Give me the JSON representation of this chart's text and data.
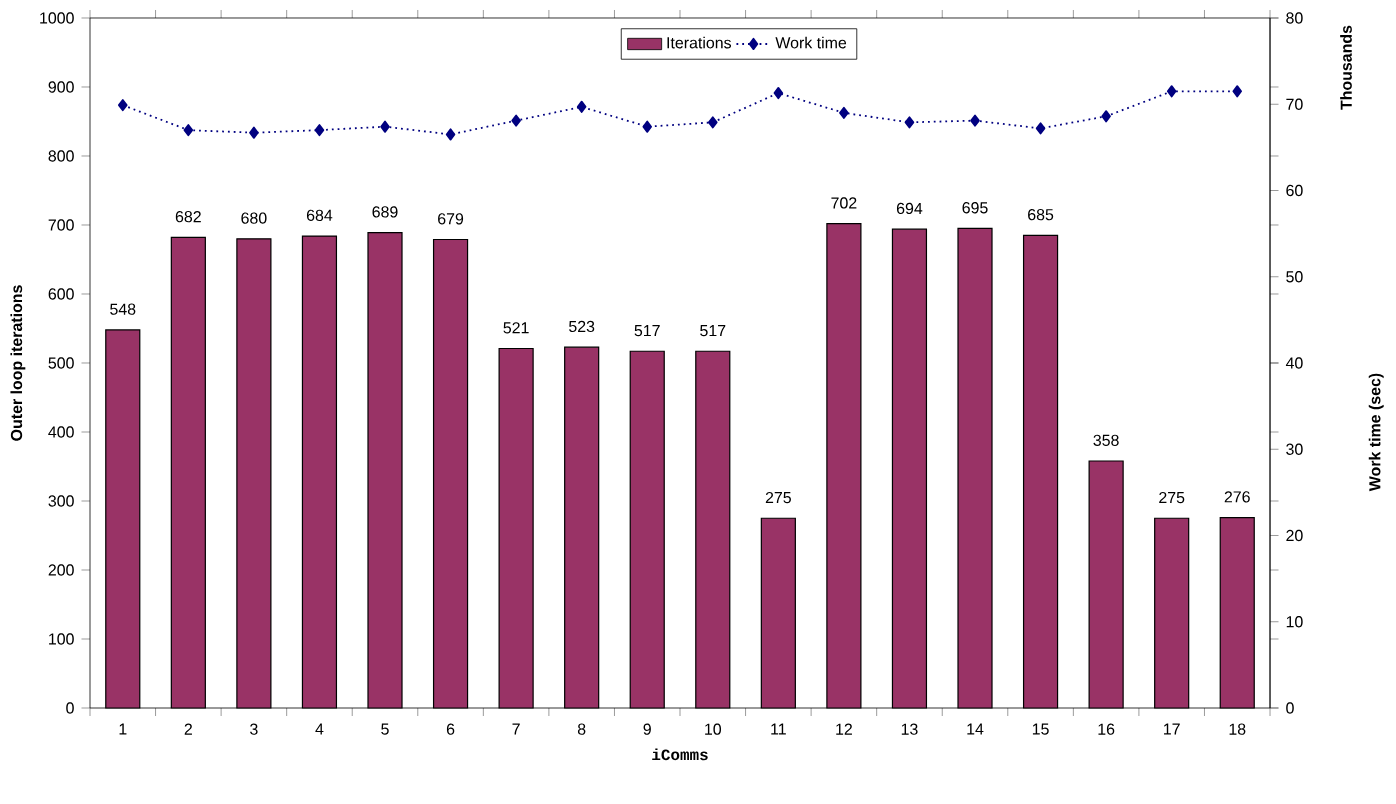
{
  "chart_data": {
    "type": "bar",
    "categories": [
      "1",
      "2",
      "3",
      "4",
      "5",
      "6",
      "7",
      "8",
      "9",
      "10",
      "11",
      "12",
      "13",
      "14",
      "15",
      "16",
      "17",
      "18"
    ],
    "series": [
      {
        "name": "Iterations",
        "color": "#993366",
        "values": [
          548,
          682,
          680,
          684,
          689,
          679,
          521,
          523,
          517,
          517,
          275,
          702,
          694,
          695,
          685,
          358,
          275,
          276
        ],
        "value_labels": [
          "548",
          "682",
          "680",
          "684",
          "689",
          "679",
          "521",
          "523",
          "517",
          "517",
          "275",
          "702",
          "694",
          "695",
          "685",
          "358",
          "275",
          "276"
        ]
      },
      {
        "name": "Work time",
        "type": "line",
        "axis": "y2",
        "color": "#000080",
        "marker": "diamond",
        "line_style": "dotted",
        "values": [
          69.9,
          67.0,
          66.7,
          67.0,
          67.4,
          66.5,
          68.1,
          69.7,
          67.4,
          67.9,
          71.3,
          69.0,
          67.9,
          68.1,
          67.2,
          68.6,
          71.5,
          71.5
        ]
      }
    ],
    "xlabel": "iComms",
    "ylabel": "Outer loop iterations",
    "y2label": "Work time (sec)",
    "annotations": [
      "Thousands"
    ],
    "ylim": [
      0,
      1000
    ],
    "yticks": [
      0,
      100,
      200,
      300,
      400,
      500,
      600,
      700,
      800,
      900,
      1000
    ],
    "y2lim": [
      0,
      80
    ],
    "y2ticks": [
      0,
      10,
      20,
      30,
      40,
      50,
      60,
      70,
      80
    ],
    "legend": "top",
    "grid": false
  }
}
